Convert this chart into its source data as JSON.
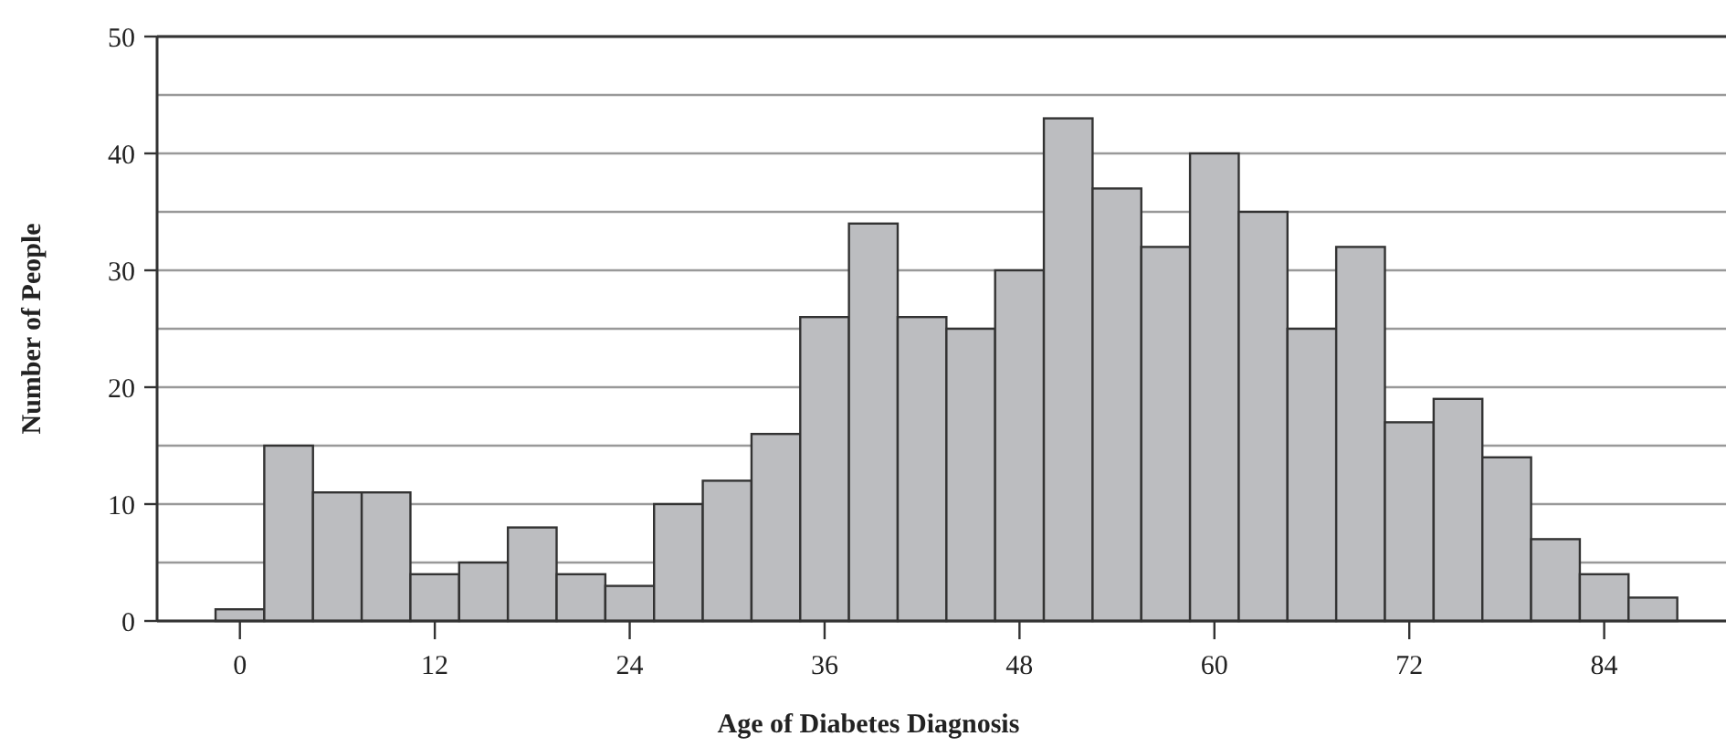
{
  "chart_data": {
    "type": "histogram",
    "xlabel": "Age of Diabetes Diagnosis",
    "ylabel": "Number of People",
    "bins": [
      -1.5,
      1.5,
      4.5,
      7.5,
      10.5,
      13.5,
      16.5,
      19.5,
      22.5,
      25.5,
      28.5,
      31.5,
      34.5,
      37.5,
      40.5,
      43.5,
      46.5,
      49.5,
      52.5,
      55.5,
      58.5,
      61.5,
      64.5,
      67.5,
      70.5,
      73.5,
      76.5,
      79.5,
      82.5,
      85.5,
      88.5
    ],
    "values": [
      1,
      15,
      11,
      11,
      4,
      5,
      8,
      4,
      3,
      10,
      12,
      16,
      26,
      34,
      26,
      25,
      30,
      43,
      37,
      32,
      40,
      35,
      25,
      32,
      17,
      19,
      14,
      7,
      4,
      2
    ],
    "color": "#bcbdc0",
    "xlim": [
      -5.1,
      91.5
    ],
    "xticks": [
      0,
      12,
      24,
      36,
      48,
      60,
      72,
      84
    ],
    "ylim": [
      0,
      50
    ],
    "yticks": [
      0,
      {
        "value": 5,
        "label": null
      },
      10,
      {
        "value": 15,
        "label": null
      },
      20,
      {
        "value": 25,
        "label": null
      },
      30,
      {
        "value": 35,
        "label": null
      },
      40,
      {
        "value": 45,
        "label": null
      },
      50
    ],
    "grid": "y"
  }
}
